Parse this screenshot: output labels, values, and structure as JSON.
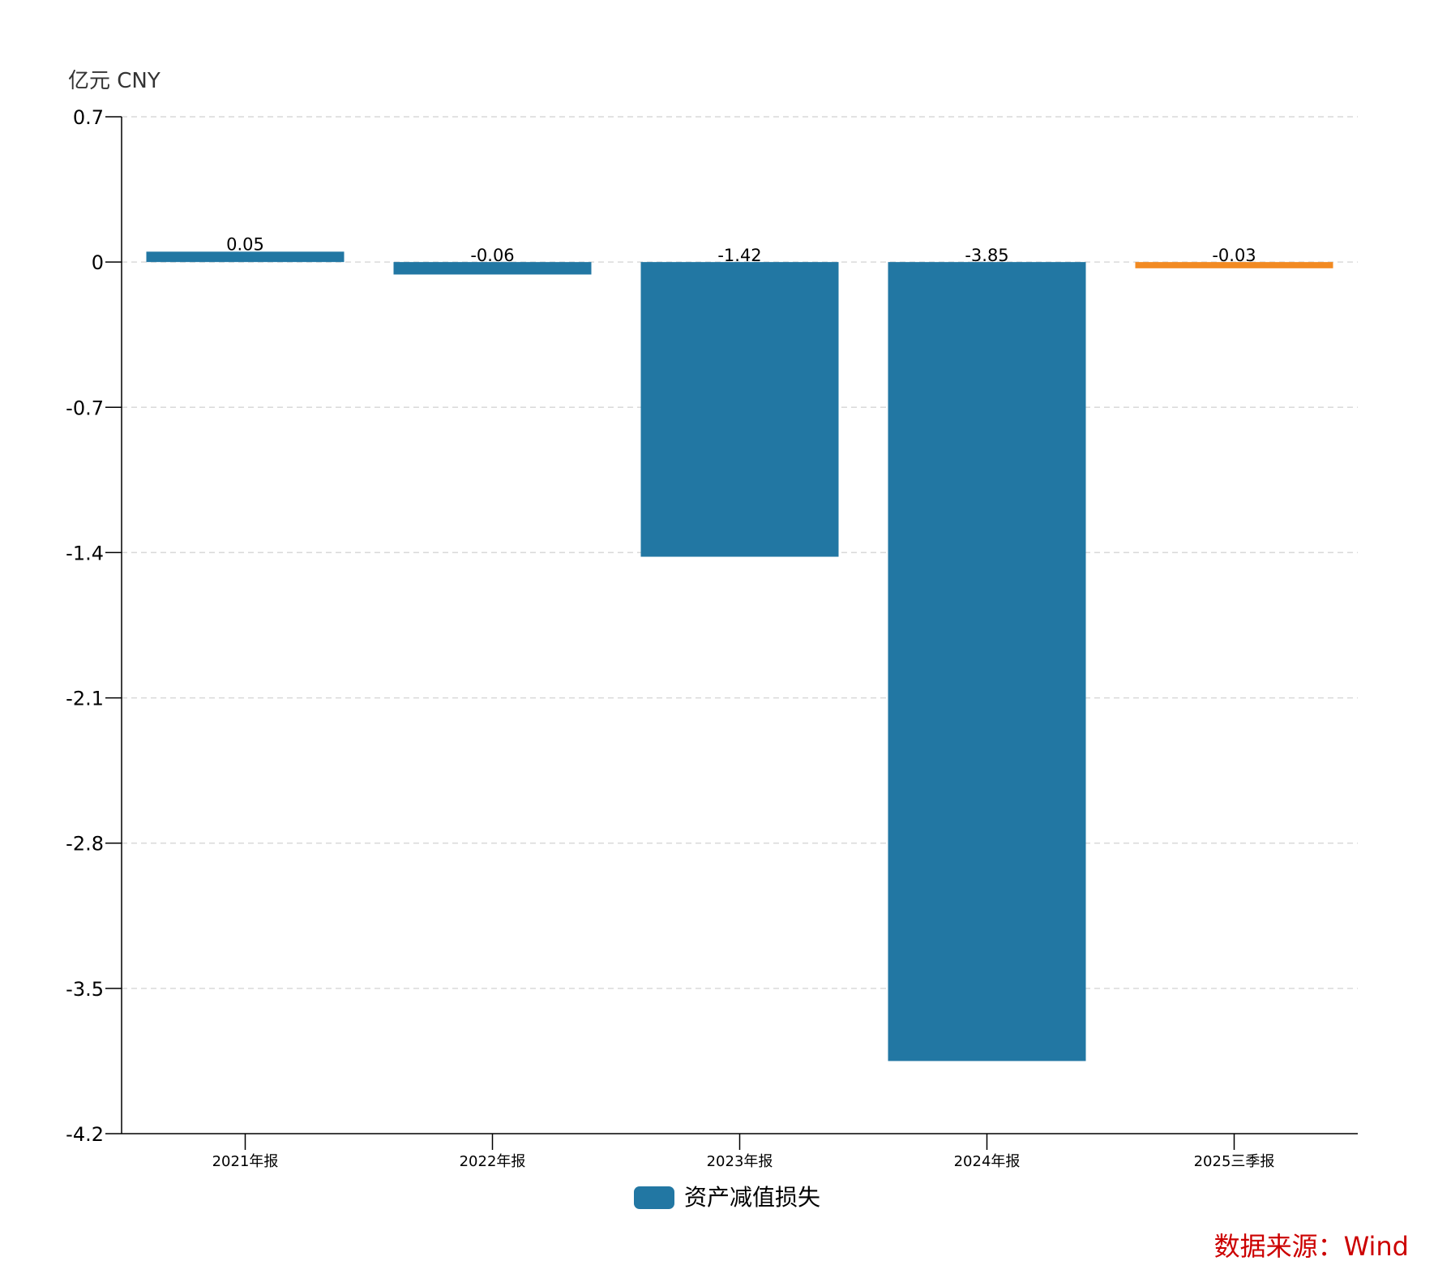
{
  "chart_data": {
    "type": "bar",
    "unit_label": "亿元  CNY",
    "categories": [
      "2021年报",
      "2022年报",
      "2023年报",
      "2024年报",
      "2025三季报"
    ],
    "series": [
      {
        "name": "资产减值损失",
        "values": [
          0.05,
          -0.06,
          -1.42,
          -3.85,
          -0.03
        ],
        "labels": [
          "0.05",
          "-0.06",
          "-1.42",
          "-3.85",
          "-0.03"
        ],
        "color": "#2277a3",
        "highlight_last_color": "#f28a22"
      }
    ],
    "ylim": [
      -4.2,
      0.7
    ],
    "yticks": [
      0.7,
      0,
      -0.7,
      -1.4,
      -2.1,
      -2.8,
      -3.5,
      -4.2
    ],
    "ytick_labels": [
      "0.7",
      "0",
      "-0.7",
      "-1.4",
      "-2.1",
      "-2.8",
      "-3.5",
      "-4.2"
    ],
    "grid": true,
    "legend_placement": "bottom-center"
  },
  "source_text": "数据来源：Wind"
}
